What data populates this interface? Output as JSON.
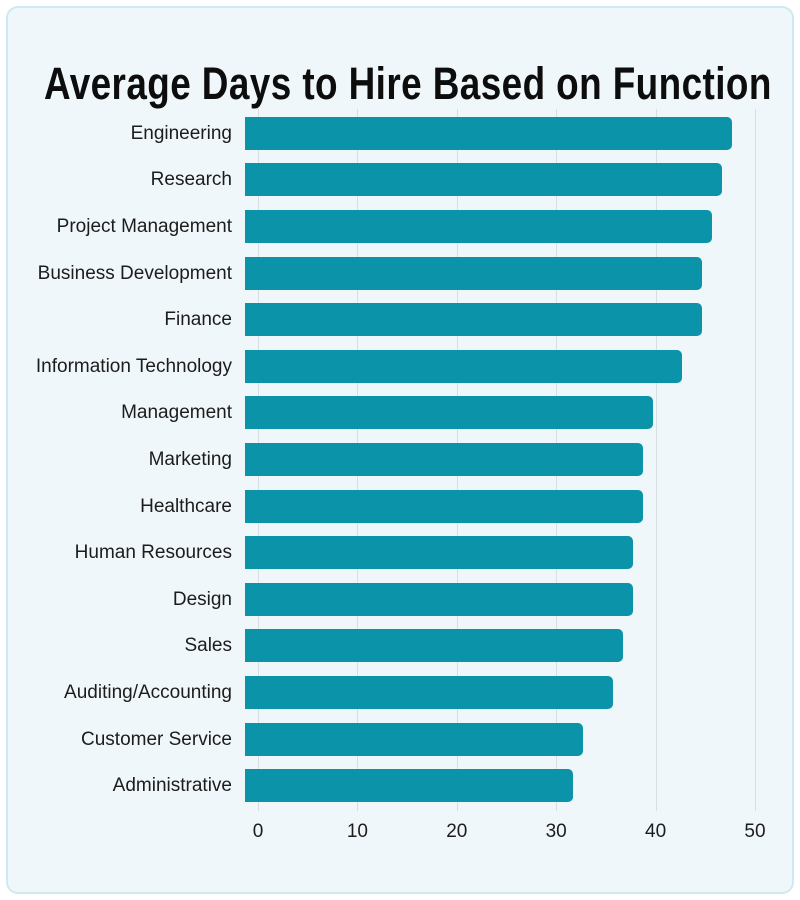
{
  "page": {
    "background": "#ffffff"
  },
  "card": {
    "background": "#f0f7fa",
    "border_color": "#cfe9f2"
  },
  "chart_data": {
    "type": "bar",
    "orientation": "horizontal",
    "title": "Average Days to Hire Based on Function",
    "categories": [
      "Engineering",
      "Research",
      "Project Management",
      "Business Development",
      "Finance",
      "Information Technology",
      "Management",
      "Marketing",
      "Healthcare",
      "Human Resources",
      "Design",
      "Sales",
      "Auditing/Accounting",
      "Customer Service",
      "Administrative"
    ],
    "values": [
      49,
      48,
      47,
      46,
      46,
      44,
      41,
      40,
      40,
      39,
      39,
      38,
      37,
      34,
      33
    ],
    "xlabel": "",
    "ylabel": "",
    "xlim": [
      0,
      50
    ],
    "x_ticks": [
      "0",
      "10",
      "20",
      "30",
      "40",
      "50"
    ],
    "grid": "vertical-gridlines-behind-bars",
    "legend": "none",
    "bar_color": "#0a93a9",
    "gridline_color": "#d9dee2",
    "title_color": "#0d0d0d",
    "label_color": "#1c1c1c",
    "tick_color": "#1c1c1c"
  }
}
